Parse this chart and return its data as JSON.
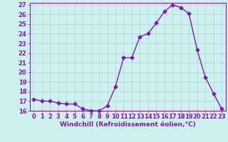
{
  "x": [
    0,
    1,
    2,
    3,
    4,
    5,
    6,
    7,
    8,
    9,
    10,
    11,
    12,
    13,
    14,
    15,
    16,
    17,
    18,
    19,
    20,
    21,
    22,
    23
  ],
  "y": [
    17.2,
    17.0,
    17.0,
    16.8,
    16.7,
    16.7,
    16.2,
    16.0,
    16.0,
    16.5,
    18.5,
    21.5,
    21.5,
    23.7,
    24.0,
    25.1,
    26.3,
    27.0,
    26.7,
    26.1,
    22.3,
    19.5,
    17.8,
    16.2
  ],
  "line_color": "#7b1fa2",
  "marker": "D",
  "marker_size": 2.5,
  "bg_color": "#cff0f0",
  "grid_color": "#b0d8d8",
  "xlabel": "Windchill (Refroidissement éolien,°C)",
  "ylim": [
    16,
    27
  ],
  "xlim": [
    -0.5,
    23.5
  ],
  "yticks": [
    16,
    17,
    18,
    19,
    20,
    21,
    22,
    23,
    24,
    25,
    26,
    27
  ],
  "xticks": [
    0,
    1,
    2,
    3,
    4,
    5,
    6,
    7,
    8,
    9,
    10,
    11,
    12,
    13,
    14,
    15,
    16,
    17,
    18,
    19,
    20,
    21,
    22,
    23
  ],
  "label_fontsize": 6.5,
  "tick_fontsize": 6
}
